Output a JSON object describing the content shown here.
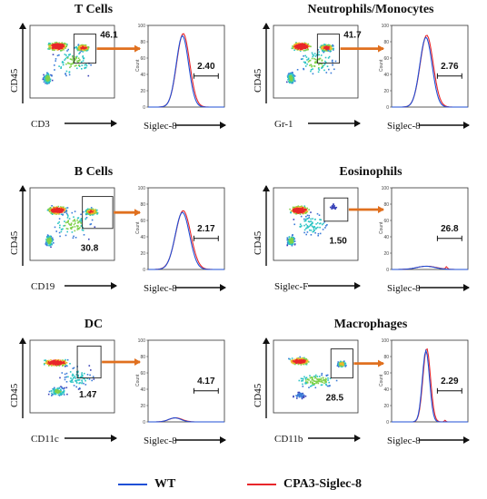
{
  "panels": [
    {
      "title": "T Cells",
      "ylabel": "CD45",
      "xlabel": "CD3",
      "hist_xlabel": "Siglec-8",
      "gate_value": "46.1",
      "hist_value": "2.40",
      "gate": "upper-right"
    },
    {
      "title": "Neutrophils/Monocytes",
      "ylabel": "CD45",
      "xlabel": "Gr-1",
      "hist_xlabel": "Siglec-8",
      "gate_value": "41.7",
      "hist_value": "2.76",
      "gate": "upper-right"
    },
    {
      "title": "B Cells",
      "ylabel": "CD45",
      "xlabel": "CD19",
      "hist_xlabel": "Siglec-8",
      "gate_value": "30.8",
      "hist_value": "2.17",
      "gate": "mid-right"
    },
    {
      "title": "Eosinophils",
      "ylabel": "CD45",
      "xlabel": "Siglec-F",
      "hist_xlabel": "Siglec-8",
      "gate_value": "1.50",
      "hist_value": "26.8",
      "gate": "small"
    },
    {
      "title": "DC",
      "ylabel": "CD45",
      "xlabel": "CD11c",
      "hist_xlabel": "Siglec-8",
      "gate_value": "1.47",
      "hist_value": "4.17",
      "gate": "dc"
    },
    {
      "title": "Macrophages",
      "ylabel": "CD45",
      "xlabel": "CD11b",
      "hist_xlabel": "Siglec-8",
      "gate_value": "28.5",
      "hist_value": "2.29",
      "gate": "mac"
    }
  ],
  "histogram": {
    "count_label": "Count",
    "y_ticks": [
      "0",
      "20",
      "40",
      "60",
      "80",
      "100"
    ]
  },
  "legend": [
    {
      "label": "WT",
      "color": "#1f4fd6"
    },
    {
      "label": "CPA3-Siglec-8",
      "color": "#e8262a"
    }
  ],
  "colors": {
    "arrow": "#e0701f",
    "wt": "#1f4fd6",
    "cpa3": "#e8262a"
  }
}
